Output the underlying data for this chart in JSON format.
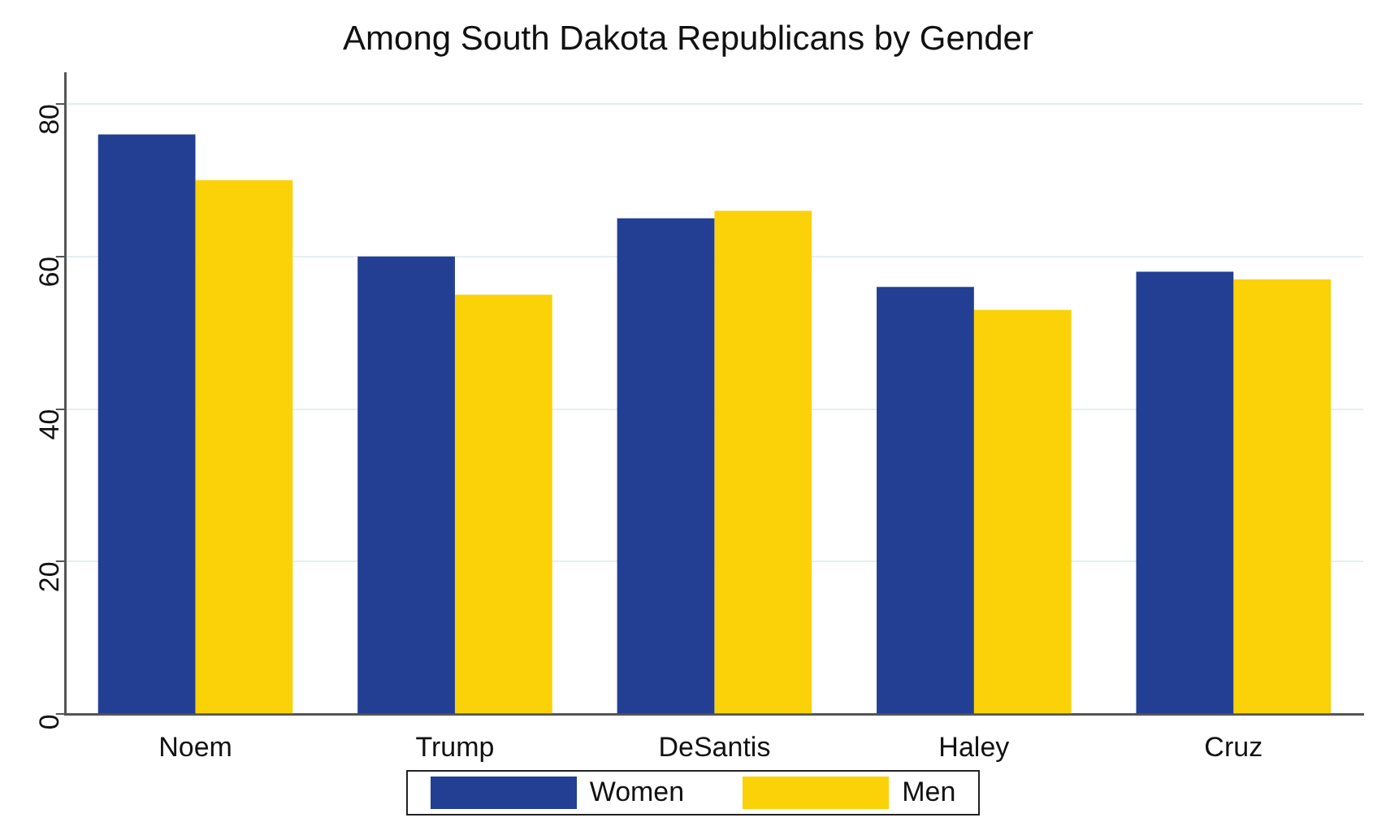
{
  "chart_data": {
    "type": "bar",
    "title": "Among South Dakota Republicans by Gender",
    "categories": [
      "Noem",
      "Trump",
      "DeSantis",
      "Haley",
      "Cruz"
    ],
    "series": [
      {
        "name": "Women",
        "color": "#233f94",
        "values": [
          76,
          60,
          65,
          56,
          58
        ]
      },
      {
        "name": "Men",
        "color": "#fad207",
        "values": [
          70,
          55,
          66,
          53,
          57
        ]
      }
    ],
    "ylim": [
      0,
      84
    ],
    "yticks": [
      0,
      20,
      40,
      60,
      80
    ],
    "grid": "y",
    "legend": "bottom"
  }
}
